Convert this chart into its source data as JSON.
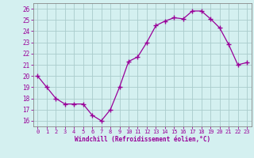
{
  "x": [
    0,
    1,
    2,
    3,
    4,
    5,
    6,
    7,
    8,
    9,
    10,
    11,
    12,
    13,
    14,
    15,
    16,
    17,
    18,
    19,
    20,
    21,
    22,
    23
  ],
  "y": [
    20.0,
    19.0,
    18.0,
    17.5,
    17.5,
    17.5,
    16.5,
    16.0,
    17.0,
    19.0,
    21.3,
    21.7,
    23.0,
    24.5,
    24.9,
    25.2,
    25.1,
    25.8,
    25.8,
    25.1,
    24.3,
    22.8,
    21.0,
    21.2
  ],
  "line_color": "#990099",
  "marker": "+",
  "marker_size": 4,
  "bg_color": "#d4f0f0",
  "grid_color": "#aacccc",
  "spine_color": "#888888",
  "tick_color": "#990099",
  "label_color": "#990099",
  "xlabel": "Windchill (Refroidissement éolien,°C)",
  "xlim": [
    -0.5,
    23.5
  ],
  "ylim": [
    15.5,
    26.5
  ],
  "yticks": [
    16,
    17,
    18,
    19,
    20,
    21,
    22,
    23,
    24,
    25,
    26
  ],
  "xticks": [
    0,
    1,
    2,
    3,
    4,
    5,
    6,
    7,
    8,
    9,
    10,
    11,
    12,
    13,
    14,
    15,
    16,
    17,
    18,
    19,
    20,
    21,
    22,
    23
  ]
}
